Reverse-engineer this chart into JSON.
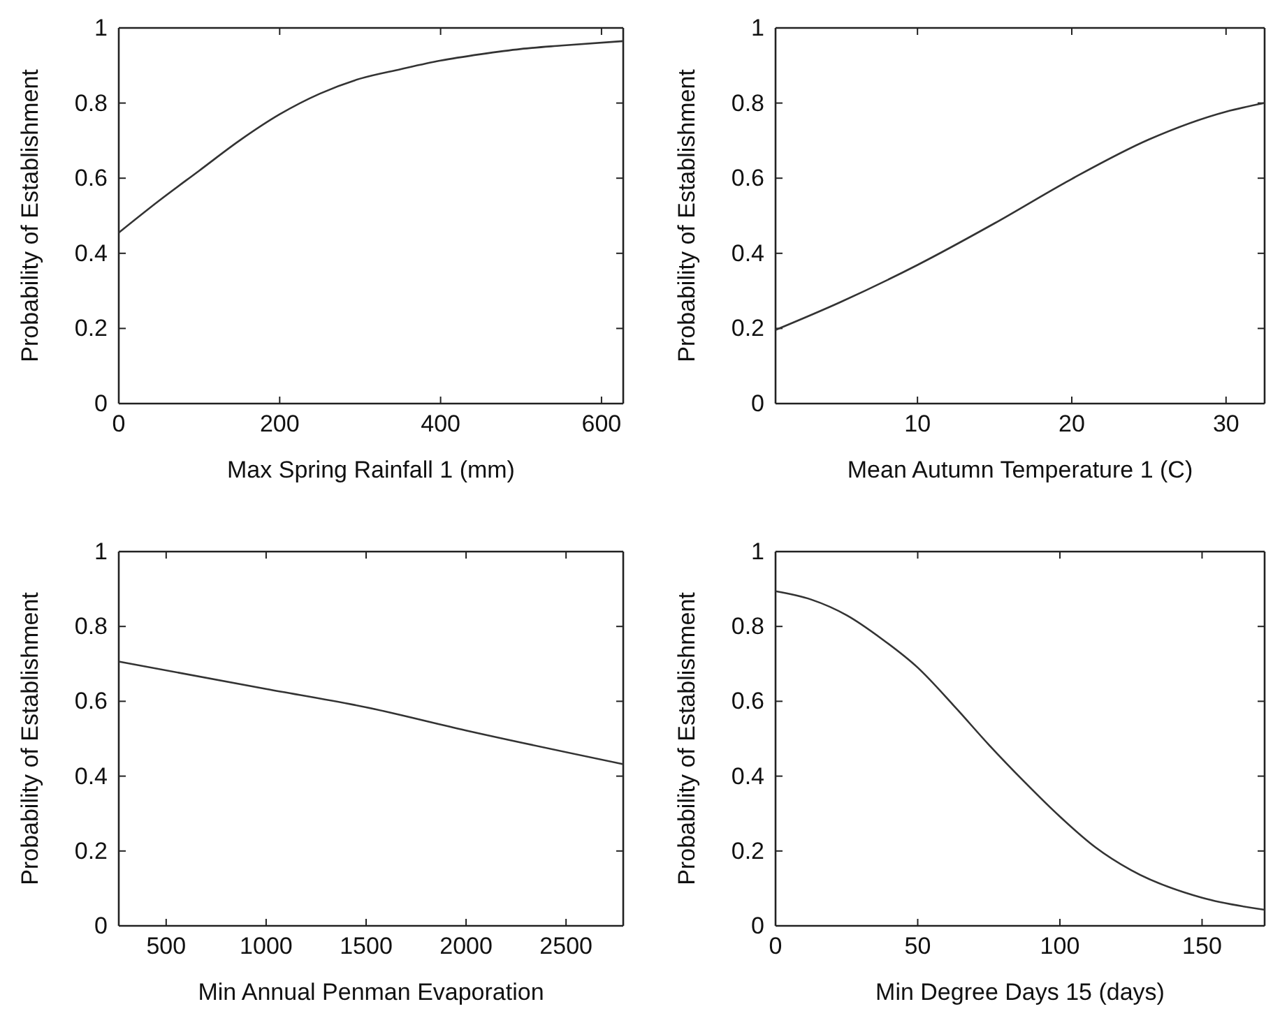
{
  "chart_data": [
    {
      "type": "line",
      "xlabel": "Max Spring Rainfall 1 (mm)",
      "ylabel": "Probability of Establishment",
      "x": [
        0,
        50,
        100,
        150,
        200,
        250,
        300,
        350,
        400,
        450,
        500,
        550,
        627
      ],
      "series": [
        {
          "color": "#333333",
          "values": [
            0.455,
            0.54,
            0.62,
            0.7,
            0.77,
            0.825,
            0.865,
            0.89,
            0.913,
            0.93,
            0.944,
            0.953,
            0.965
          ]
        }
      ],
      "xlim": [
        0,
        627
      ],
      "xticks": [
        0,
        200,
        400,
        600
      ],
      "ylim": [
        0,
        1
      ],
      "yticks": [
        0,
        0.2,
        0.4,
        0.6,
        0.8,
        1
      ],
      "grid": false
    },
    {
      "type": "line",
      "xlabel": "Mean Autumn Temperature 1 (C)",
      "ylabel": "Probability of Establishment",
      "x": [
        0.8,
        5,
        10,
        15,
        20,
        25,
        30,
        32.5
      ],
      "series": [
        {
          "color": "#333333",
          "values": [
            0.196,
            0.27,
            0.369,
            0.48,
            0.598,
            0.703,
            0.777,
            0.8
          ]
        }
      ],
      "xlim": [
        0.8,
        32.5
      ],
      "xticks": [
        10,
        20,
        30
      ],
      "ylim": [
        0,
        1
      ],
      "yticks": [
        0,
        0.2,
        0.4,
        0.6,
        0.8,
        1
      ],
      "grid": false
    },
    {
      "type": "line",
      "xlabel": "Min Annual Penman Evaporation",
      "ylabel": "Probability of Establishment",
      "x": [
        263,
        1000,
        1500,
        2000,
        2786
      ],
      "series": [
        {
          "color": "#333333",
          "values": [
            0.706,
            0.633,
            0.584,
            0.522,
            0.432
          ]
        }
      ],
      "xlim": [
        263,
        2786
      ],
      "xticks": [
        500,
        1000,
        1500,
        2000,
        2500
      ],
      "ylim": [
        0,
        1
      ],
      "yticks": [
        0,
        0.2,
        0.4,
        0.6,
        0.8,
        1
      ],
      "grid": false
    },
    {
      "type": "line",
      "xlabel": "Min Degree Days 15 (days)",
      "ylabel": "Probability of Establishment",
      "x": [
        0,
        12.5,
        25,
        37.5,
        50,
        62.5,
        75,
        87.5,
        100,
        112.5,
        125,
        150,
        172
      ],
      "series": [
        {
          "color": "#333333",
          "values": [
            0.894,
            0.872,
            0.83,
            0.766,
            0.69,
            0.59,
            0.484,
            0.385,
            0.292,
            0.21,
            0.149,
            0.075,
            0.043
          ]
        }
      ],
      "xlim": [
        0,
        172
      ],
      "xticks": [
        0,
        50,
        100,
        150
      ],
      "ylim": [
        0,
        1
      ],
      "yticks": [
        0,
        0.2,
        0.4,
        0.6,
        0.8,
        1
      ],
      "grid": false
    }
  ]
}
